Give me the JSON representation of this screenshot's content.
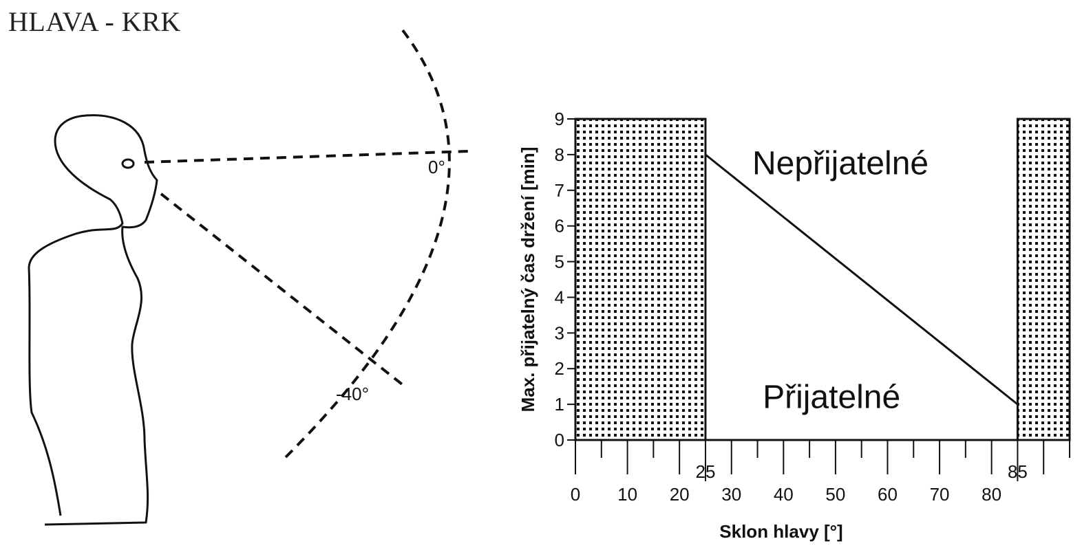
{
  "title": "HLAVA - KRK",
  "diagram": {
    "angle_horizontal": "0°",
    "angle_down": "-40°"
  },
  "chart_data": {
    "type": "line",
    "xlabel": "Sklon hlavy [°]",
    "ylabel": "Max. přijatelný čas držení [min]",
    "xlim": [
      0,
      95
    ],
    "ylim": [
      0,
      9
    ],
    "x_ticks": [
      0,
      10,
      20,
      30,
      40,
      50,
      60,
      70,
      80
    ],
    "y_ticks": [
      0,
      1,
      2,
      3,
      4,
      5,
      6,
      7,
      8,
      9
    ],
    "x_special_ticks": [
      25,
      85
    ],
    "series": [
      {
        "x": [
          25,
          85
        ],
        "y": [
          8,
          1
        ]
      }
    ],
    "unacceptable_ranges": [
      [
        0,
        25
      ],
      [
        85,
        95
      ]
    ],
    "region_labels": {
      "upper": "Nepřijatelné",
      "lower": "Přijatelné"
    },
    "grid": false
  }
}
